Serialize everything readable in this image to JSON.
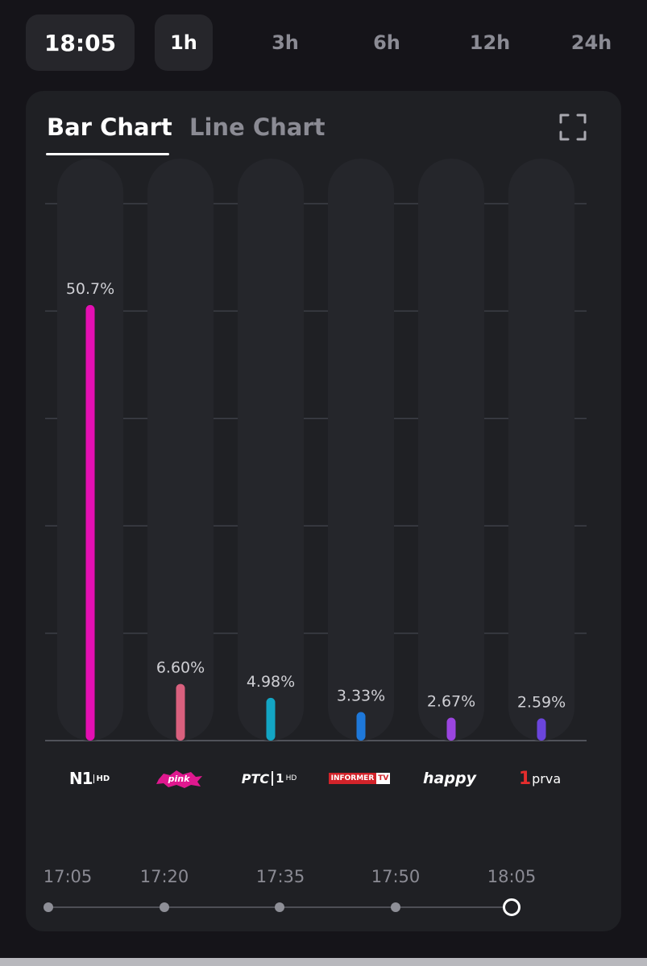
{
  "current_time": "18:05",
  "ranges": [
    "1h",
    "3h",
    "6h",
    "12h",
    "24h"
  ],
  "active_range": "1h",
  "tabs": {
    "bar": "Bar Chart",
    "line": "Line Chart"
  },
  "chart_data": {
    "type": "bar",
    "categories": [
      "N1 HD",
      "pink",
      "РТС 1 HD",
      "INFORMER TV",
      "happy",
      "1 prva"
    ],
    "values": [
      50.7,
      6.6,
      4.98,
      3.33,
      2.67,
      2.59
    ],
    "labels": [
      "50.7%",
      "6.60%",
      "4.98%",
      "3.33%",
      "2.67%",
      "2.59%"
    ],
    "colors": [
      "#e40fb2",
      "#d9607e",
      "#13a5c4",
      "#1e78da",
      "#9b45e0",
      "#6b45dc"
    ],
    "ylim": [
      0,
      62.5
    ],
    "grid": true
  },
  "logos": {
    "n1": {
      "main": "N1",
      "badge": "HD"
    },
    "pink": "pink",
    "rts": {
      "main": "РТС",
      "sub": "1",
      "hd": "HD"
    },
    "informer": {
      "main": "INFORMER",
      "tv": "TV"
    },
    "happy": "happy",
    "prva": {
      "num": "1",
      "name": "prva"
    }
  },
  "timeline": {
    "labels": [
      "17:05",
      "17:20",
      "17:35",
      "17:50",
      "18:05"
    ],
    "current_index": 4
  }
}
